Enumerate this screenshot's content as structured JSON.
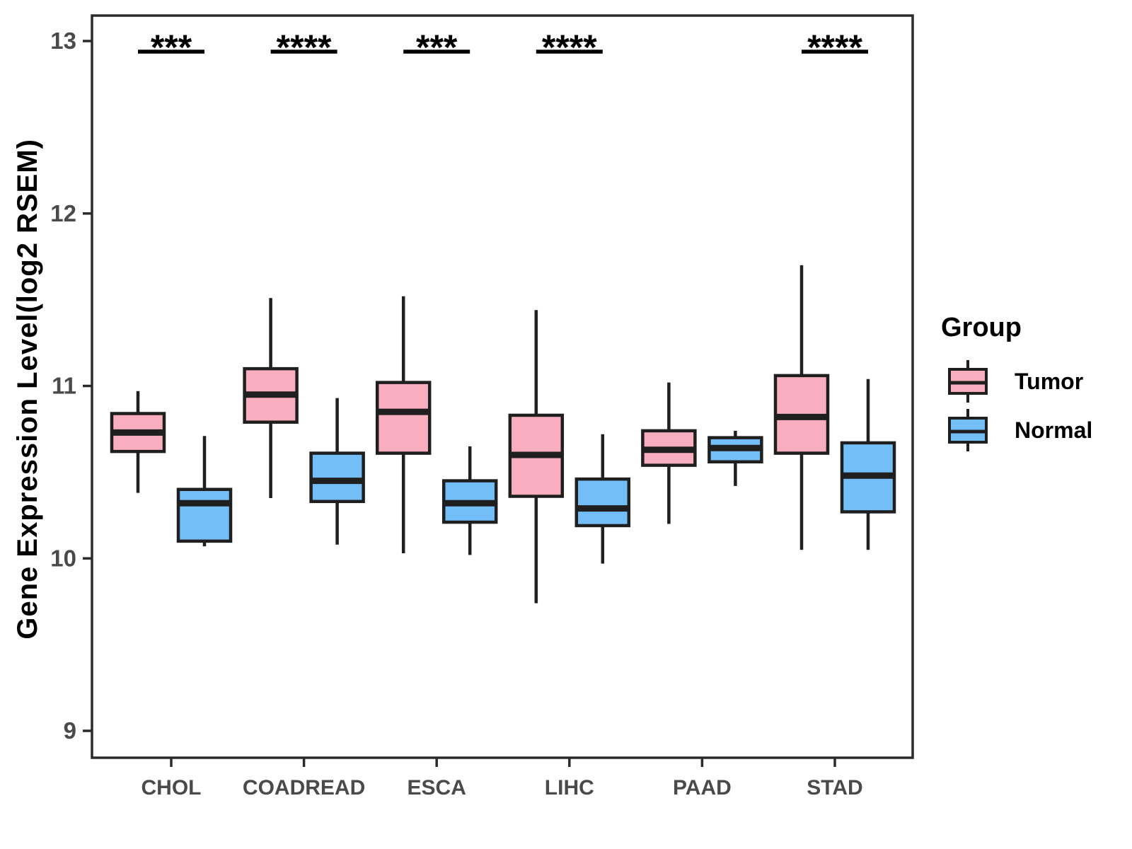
{
  "chart_data": {
    "type": "boxplot",
    "title": "",
    "xlabel": "",
    "ylabel": "Gene Expression Level(log2 RSEM)",
    "categories": [
      "CHOL",
      "COADREAD",
      "ESCA",
      "LIHC",
      "PAAD",
      "STAD"
    ],
    "y_ticks": [
      13,
      12,
      11,
      10,
      9
    ],
    "ylim": [
      8.8,
      13.15
    ],
    "grid": "off",
    "legend": {
      "title": "Group",
      "position": "right",
      "entries": [
        {
          "label": "Tumor",
          "color": "#F9AEC0"
        },
        {
          "label": "Normal",
          "color": "#74BEF8"
        }
      ]
    },
    "series": [
      {
        "name": "Tumor",
        "color": "#F9AEC0",
        "boxes": [
          {
            "category": "CHOL",
            "whisker_low": 10.38,
            "q1": 10.62,
            "median": 10.73,
            "q3": 10.84,
            "whisker_high": 10.97
          },
          {
            "category": "COADREAD",
            "whisker_low": 10.35,
            "q1": 10.79,
            "median": 10.95,
            "q3": 11.1,
            "whisker_high": 11.51
          },
          {
            "category": "ESCA",
            "whisker_low": 10.03,
            "q1": 10.61,
            "median": 10.85,
            "q3": 11.02,
            "whisker_high": 11.52
          },
          {
            "category": "LIHC",
            "whisker_low": 9.74,
            "q1": 10.36,
            "median": 10.6,
            "q3": 10.83,
            "whisker_high": 11.44
          },
          {
            "category": "PAAD",
            "whisker_low": 10.2,
            "q1": 10.54,
            "median": 10.63,
            "q3": 10.74,
            "whisker_high": 11.02
          },
          {
            "category": "STAD",
            "whisker_low": 10.05,
            "q1": 10.61,
            "median": 10.82,
            "q3": 11.06,
            "whisker_high": 11.7
          }
        ]
      },
      {
        "name": "Normal",
        "color": "#74BEF8",
        "boxes": [
          {
            "category": "CHOL",
            "whisker_low": 10.07,
            "q1": 10.1,
            "median": 10.32,
            "q3": 10.4,
            "whisker_high": 10.71
          },
          {
            "category": "COADREAD",
            "whisker_low": 10.08,
            "q1": 10.33,
            "median": 10.45,
            "q3": 10.61,
            "whisker_high": 10.93
          },
          {
            "category": "ESCA",
            "whisker_low": 10.02,
            "q1": 10.21,
            "median": 10.32,
            "q3": 10.45,
            "whisker_high": 10.65
          },
          {
            "category": "LIHC",
            "whisker_low": 9.97,
            "q1": 10.19,
            "median": 10.29,
            "q3": 10.46,
            "whisker_high": 10.72
          },
          {
            "category": "PAAD",
            "whisker_low": 10.42,
            "q1": 10.56,
            "median": 10.64,
            "q3": 10.7,
            "whisker_high": 10.74
          },
          {
            "category": "STAD",
            "whisker_low": 10.05,
            "q1": 10.27,
            "median": 10.48,
            "q3": 10.67,
            "whisker_high": 11.04
          }
        ]
      }
    ],
    "significance": [
      {
        "category": "CHOL",
        "label": "***"
      },
      {
        "category": "COADREAD",
        "label": "****"
      },
      {
        "category": "ESCA",
        "label": "***"
      },
      {
        "category": "LIHC",
        "label": "****"
      },
      {
        "category": "STAD",
        "label": "****"
      }
    ],
    "colors": {
      "panel_background": "#FFFFFF",
      "axis_line": "#2B2B2B",
      "box_stroke": "#1F1F1F",
      "tick_label": "#4A4A4A",
      "annotation": "#000000"
    }
  }
}
